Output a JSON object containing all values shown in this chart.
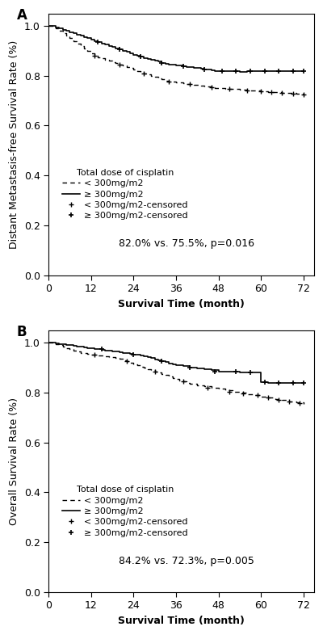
{
  "panel_A": {
    "title": "A",
    "ylabel": "Distant Metastasis-free Survival Rate (%)",
    "xlabel": "Survival Time (month)",
    "annotation": "82.0% vs. 75.5%, p=0.016",
    "legend_title": "Total dose of cisplatin",
    "legend_entries": [
      "< 300mg/m2",
      "≥ 300mg/m2",
      "< 300mg/m2-censored",
      "≥ 300mg/m2-censored"
    ],
    "ylim": [
      0.0,
      1.05
    ],
    "xlim": [
      0,
      75
    ],
    "xticks": [
      0,
      12,
      24,
      36,
      48,
      60,
      72
    ],
    "yticks": [
      0.0,
      0.2,
      0.4,
      0.6,
      0.8,
      1.0
    ],
    "curve_low": {
      "t": [
        0,
        1,
        2,
        3,
        4,
        5,
        6,
        7,
        8,
        9,
        10,
        11,
        12,
        13,
        14,
        15,
        16,
        17,
        18,
        19,
        20,
        21,
        22,
        23,
        24,
        25,
        26,
        27,
        28,
        29,
        30,
        31,
        32,
        33,
        34,
        35,
        36,
        37,
        38,
        39,
        40,
        41,
        42,
        43,
        44,
        45,
        46,
        47,
        48,
        50,
        52,
        54,
        56,
        58,
        60,
        62,
        64,
        66,
        68,
        70,
        72
      ],
      "s": [
        1.0,
        1.0,
        0.99,
        0.98,
        0.97,
        0.96,
        0.95,
        0.94,
        0.93,
        0.92,
        0.91,
        0.9,
        0.89,
        0.88,
        0.875,
        0.87,
        0.865,
        0.86,
        0.855,
        0.85,
        0.845,
        0.84,
        0.835,
        0.83,
        0.825,
        0.82,
        0.815,
        0.81,
        0.805,
        0.8,
        0.795,
        0.79,
        0.785,
        0.78,
        0.778,
        0.776,
        0.774,
        0.772,
        0.77,
        0.768,
        0.766,
        0.764,
        0.762,
        0.76,
        0.758,
        0.756,
        0.754,
        0.752,
        0.75,
        0.748,
        0.746,
        0.744,
        0.742,
        0.74,
        0.738,
        0.736,
        0.734,
        0.732,
        0.73,
        0.728,
        0.726
      ]
    },
    "curve_high": {
      "t": [
        0,
        1,
        2,
        3,
        4,
        5,
        6,
        7,
        8,
        9,
        10,
        11,
        12,
        13,
        14,
        15,
        16,
        17,
        18,
        19,
        20,
        21,
        22,
        23,
        24,
        25,
        26,
        27,
        28,
        29,
        30,
        31,
        32,
        33,
        34,
        35,
        36,
        37,
        38,
        39,
        40,
        41,
        42,
        43,
        44,
        45,
        46,
        47,
        48,
        50,
        52,
        54,
        56,
        58,
        60,
        62,
        64,
        66,
        68,
        70,
        72
      ],
      "s": [
        1.0,
        1.0,
        0.995,
        0.99,
        0.985,
        0.98,
        0.975,
        0.97,
        0.965,
        0.96,
        0.955,
        0.95,
        0.945,
        0.94,
        0.935,
        0.93,
        0.925,
        0.92,
        0.915,
        0.91,
        0.905,
        0.9,
        0.895,
        0.89,
        0.885,
        0.88,
        0.876,
        0.872,
        0.868,
        0.864,
        0.86,
        0.856,
        0.852,
        0.848,
        0.846,
        0.844,
        0.842,
        0.84,
        0.838,
        0.836,
        0.834,
        0.832,
        0.83,
        0.828,
        0.826,
        0.824,
        0.822,
        0.82,
        0.82,
        0.819,
        0.818,
        0.817,
        0.818,
        0.819,
        0.82,
        0.82,
        0.82,
        0.82,
        0.82,
        0.82,
        0.82
      ]
    },
    "censored_low_t": [
      13,
      20,
      27,
      34,
      40,
      46,
      51,
      56,
      60,
      63,
      66,
      69,
      72
    ],
    "censored_low_s": [
      0.88,
      0.845,
      0.81,
      0.778,
      0.766,
      0.754,
      0.748,
      0.742,
      0.738,
      0.736,
      0.732,
      0.728,
      0.726
    ],
    "censored_high_t": [
      14,
      20,
      26,
      32,
      38,
      44,
      49,
      53,
      57,
      61,
      65,
      69,
      72
    ],
    "censored_high_s": [
      0.935,
      0.905,
      0.876,
      0.852,
      0.838,
      0.826,
      0.82,
      0.818,
      0.819,
      0.82,
      0.82,
      0.82,
      0.82
    ]
  },
  "panel_B": {
    "title": "B",
    "ylabel": "Overall Survival Rate (%)",
    "xlabel": "Survival Time (month)",
    "annotation": "84.2% vs. 72.3%, p=0.005",
    "legend_title": "Total dose of cisplatin",
    "legend_entries": [
      "< 300mg/m2",
      "≥ 300mg/m2",
      "< 300mg/m2-censored",
      "≥ 300mg/m2-censored"
    ],
    "ylim": [
      0.0,
      1.05
    ],
    "xlim": [
      0,
      75
    ],
    "xticks": [
      0,
      12,
      24,
      36,
      48,
      60,
      72
    ],
    "yticks": [
      0.0,
      0.2,
      0.4,
      0.6,
      0.8,
      1.0
    ],
    "curve_low": {
      "t": [
        0,
        1,
        2,
        3,
        4,
        5,
        6,
        7,
        8,
        9,
        10,
        11,
        12,
        13,
        14,
        15,
        16,
        17,
        18,
        19,
        20,
        21,
        22,
        23,
        24,
        25,
        26,
        27,
        28,
        29,
        30,
        31,
        32,
        33,
        34,
        35,
        36,
        37,
        38,
        39,
        40,
        42,
        44,
        46,
        48,
        50,
        52,
        54,
        56,
        58,
        60,
        62,
        64,
        66,
        68,
        70,
        72
      ],
      "s": [
        1.0,
        1.0,
        0.995,
        0.99,
        0.985,
        0.98,
        0.975,
        0.97,
        0.965,
        0.96,
        0.958,
        0.956,
        0.954,
        0.952,
        0.95,
        0.948,
        0.946,
        0.944,
        0.942,
        0.94,
        0.935,
        0.93,
        0.925,
        0.92,
        0.915,
        0.91,
        0.905,
        0.9,
        0.895,
        0.89,
        0.885,
        0.88,
        0.875,
        0.87,
        0.865,
        0.86,
        0.855,
        0.85,
        0.845,
        0.84,
        0.835,
        0.83,
        0.825,
        0.82,
        0.815,
        0.81,
        0.805,
        0.8,
        0.795,
        0.79,
        0.785,
        0.78,
        0.775,
        0.77,
        0.765,
        0.76,
        0.755
      ]
    },
    "curve_high": {
      "t": [
        0,
        1,
        2,
        3,
        4,
        5,
        6,
        7,
        8,
        9,
        10,
        11,
        12,
        13,
        14,
        15,
        16,
        17,
        18,
        19,
        20,
        21,
        22,
        23,
        24,
        25,
        26,
        27,
        28,
        29,
        30,
        31,
        32,
        33,
        34,
        35,
        36,
        38,
        40,
        42,
        44,
        46,
        48,
        50,
        52,
        54,
        56,
        58,
        60,
        62,
        64,
        66,
        68,
        70,
        72
      ],
      "s": [
        1.0,
        1.0,
        0.998,
        0.996,
        0.994,
        0.992,
        0.99,
        0.988,
        0.986,
        0.984,
        0.982,
        0.98,
        0.978,
        0.976,
        0.974,
        0.972,
        0.97,
        0.968,
        0.966,
        0.964,
        0.962,
        0.96,
        0.958,
        0.956,
        0.954,
        0.952,
        0.95,
        0.946,
        0.942,
        0.938,
        0.934,
        0.93,
        0.926,
        0.922,
        0.918,
        0.914,
        0.91,
        0.906,
        0.902,
        0.898,
        0.894,
        0.89,
        0.886,
        0.884,
        0.883,
        0.882,
        0.882,
        0.882,
        0.842,
        0.84,
        0.84,
        0.84,
        0.84,
        0.84,
        0.84
      ]
    },
    "censored_low_t": [
      13,
      22,
      30,
      38,
      45,
      51,
      55,
      59,
      62,
      65,
      68,
      71
    ],
    "censored_low_s": [
      0.952,
      0.925,
      0.885,
      0.845,
      0.82,
      0.805,
      0.798,
      0.79,
      0.78,
      0.772,
      0.765,
      0.758
    ],
    "censored_high_t": [
      15,
      24,
      32,
      40,
      47,
      53,
      57,
      61,
      65,
      69,
      72
    ],
    "censored_high_s": [
      0.974,
      0.954,
      0.926,
      0.902,
      0.886,
      0.883,
      0.882,
      0.842,
      0.84,
      0.84,
      0.84
    ]
  },
  "line_color_low": "#555555",
  "line_color_high": "#000000",
  "bg_color": "#ffffff",
  "font_size": 9,
  "tick_font_size": 9,
  "label_font_size": 9,
  "legend_font_size": 8
}
